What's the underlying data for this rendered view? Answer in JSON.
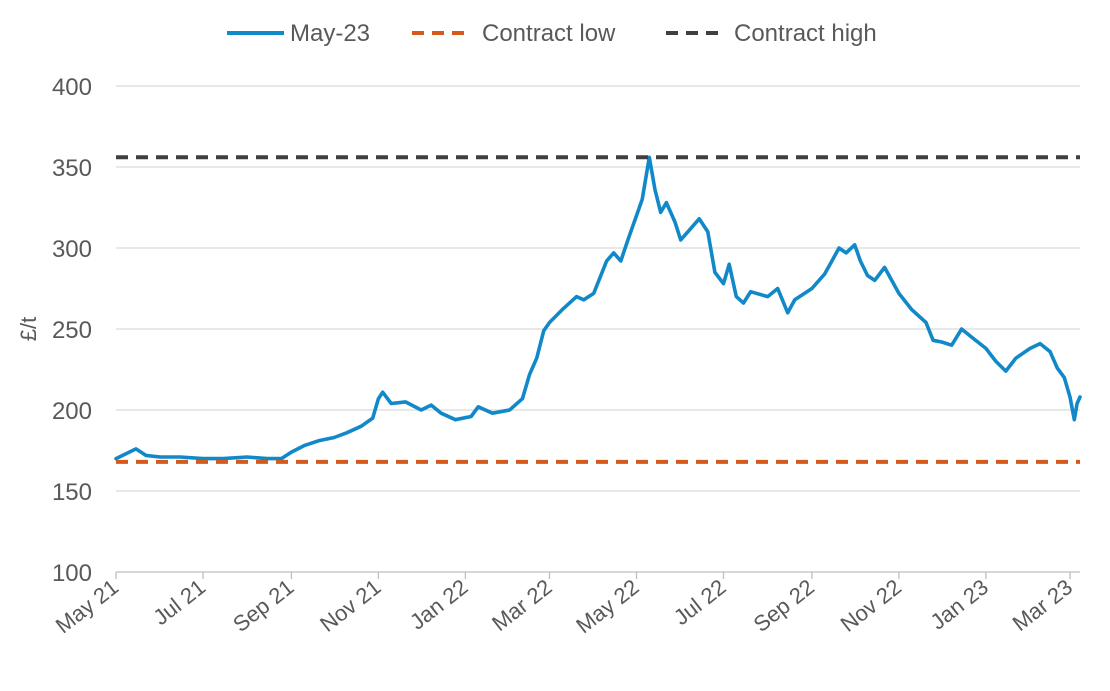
{
  "chart_data": {
    "type": "line",
    "title": "",
    "xlabel": "",
    "ylabel": "£/t",
    "ylim": [
      100,
      400
    ],
    "y_ticks": [
      100,
      150,
      200,
      250,
      300,
      350,
      400
    ],
    "x_tick_labels": [
      "May 21",
      "Jul 21",
      "Sep 21",
      "Nov 21",
      "Jan 22",
      "Mar 22",
      "May 22",
      "Jul 22",
      "Sep 22",
      "Nov 22",
      "Jan 23",
      "Mar 23"
    ],
    "x_range": [
      "2021-05-01",
      "2023-03-08"
    ],
    "grid": true,
    "legend_placement": "top-center",
    "series": [
      {
        "name": "May-23",
        "style": "solid",
        "color": "#1189C9",
        "points": [
          [
            "2021-05-01",
            170
          ],
          [
            "2021-05-08",
            173
          ],
          [
            "2021-05-15",
            176
          ],
          [
            "2021-05-22",
            172
          ],
          [
            "2021-06-01",
            171
          ],
          [
            "2021-06-15",
            171
          ],
          [
            "2021-07-01",
            170
          ],
          [
            "2021-07-15",
            170
          ],
          [
            "2021-08-01",
            171
          ],
          [
            "2021-08-15",
            170
          ],
          [
            "2021-08-25",
            170
          ],
          [
            "2021-09-01",
            174
          ],
          [
            "2021-09-10",
            178
          ],
          [
            "2021-09-20",
            181
          ],
          [
            "2021-10-01",
            183
          ],
          [
            "2021-10-10",
            186
          ],
          [
            "2021-10-20",
            190
          ],
          [
            "2021-10-28",
            195
          ],
          [
            "2021-11-01",
            207
          ],
          [
            "2021-11-04",
            211
          ],
          [
            "2021-11-10",
            204
          ],
          [
            "2021-11-20",
            205
          ],
          [
            "2021-12-01",
            200
          ],
          [
            "2021-12-08",
            203
          ],
          [
            "2021-12-15",
            198
          ],
          [
            "2021-12-25",
            194
          ],
          [
            "2022-01-05",
            196
          ],
          [
            "2022-01-10",
            202
          ],
          [
            "2022-01-20",
            198
          ],
          [
            "2022-02-01",
            200
          ],
          [
            "2022-02-10",
            207
          ],
          [
            "2022-02-15",
            222
          ],
          [
            "2022-02-20",
            232
          ],
          [
            "2022-02-25",
            249
          ],
          [
            "2022-03-01",
            254
          ],
          [
            "2022-03-10",
            262
          ],
          [
            "2022-03-20",
            270
          ],
          [
            "2022-03-25",
            268
          ],
          [
            "2022-04-01",
            272
          ],
          [
            "2022-04-10",
            292
          ],
          [
            "2022-04-15",
            297
          ],
          [
            "2022-04-20",
            292
          ],
          [
            "2022-04-25",
            305
          ],
          [
            "2022-05-01",
            320
          ],
          [
            "2022-05-05",
            330
          ],
          [
            "2022-05-10",
            356
          ],
          [
            "2022-05-14",
            336
          ],
          [
            "2022-05-18",
            322
          ],
          [
            "2022-05-22",
            328
          ],
          [
            "2022-05-28",
            316
          ],
          [
            "2022-06-01",
            305
          ],
          [
            "2022-06-08",
            312
          ],
          [
            "2022-06-14",
            318
          ],
          [
            "2022-06-20",
            310
          ],
          [
            "2022-06-25",
            285
          ],
          [
            "2022-07-01",
            278
          ],
          [
            "2022-07-05",
            290
          ],
          [
            "2022-07-10",
            270
          ],
          [
            "2022-07-15",
            266
          ],
          [
            "2022-07-20",
            273
          ],
          [
            "2022-08-01",
            270
          ],
          [
            "2022-08-08",
            275
          ],
          [
            "2022-08-15",
            260
          ],
          [
            "2022-08-20",
            268
          ],
          [
            "2022-09-01",
            275
          ],
          [
            "2022-09-10",
            284
          ],
          [
            "2022-09-15",
            292
          ],
          [
            "2022-09-20",
            300
          ],
          [
            "2022-09-25",
            297
          ],
          [
            "2022-10-01",
            302
          ],
          [
            "2022-10-05",
            292
          ],
          [
            "2022-10-10",
            283
          ],
          [
            "2022-10-15",
            280
          ],
          [
            "2022-10-22",
            288
          ],
          [
            "2022-11-01",
            272
          ],
          [
            "2022-11-10",
            262
          ],
          [
            "2022-11-20",
            254
          ],
          [
            "2022-11-25",
            243
          ],
          [
            "2022-12-01",
            242
          ],
          [
            "2022-12-08",
            240
          ],
          [
            "2022-12-15",
            250
          ],
          [
            "2022-12-22",
            245
          ],
          [
            "2023-01-01",
            238
          ],
          [
            "2023-01-08",
            230
          ],
          [
            "2023-01-15",
            224
          ],
          [
            "2023-01-22",
            232
          ],
          [
            "2023-02-01",
            238
          ],
          [
            "2023-02-08",
            241
          ],
          [
            "2023-02-15",
            236
          ],
          [
            "2023-02-20",
            226
          ],
          [
            "2023-02-25",
            220
          ],
          [
            "2023-03-01",
            208
          ],
          [
            "2023-03-04",
            194
          ],
          [
            "2023-03-06",
            204
          ],
          [
            "2023-03-08",
            208
          ]
        ]
      },
      {
        "name": "Contract low",
        "style": "dashed",
        "color": "#D55A1E",
        "value": 168
      },
      {
        "name": "Contract high",
        "style": "dashed",
        "color": "#3F3F3F",
        "value": 356
      }
    ]
  }
}
